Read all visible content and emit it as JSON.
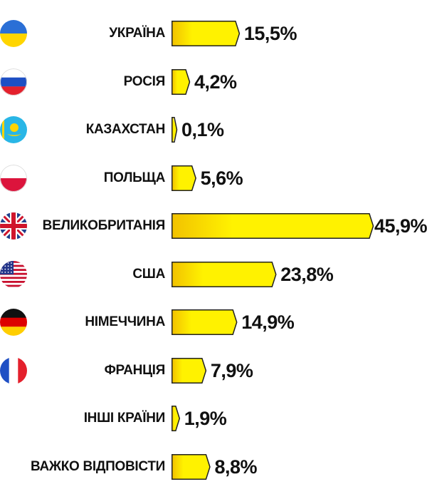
{
  "chart_data": {
    "type": "bar",
    "orientation": "horizontal",
    "title": "",
    "xlabel": "",
    "ylabel": "",
    "bar_color": "#fff200",
    "grid": false,
    "categories": [
      "УКРАЇНА",
      "РОСІЯ",
      "КАЗАХСТАН",
      "ПОЛЬЩА",
      "ВЕЛИКОБРИТАНІЯ",
      "США",
      "НІМЕЧЧИНА",
      "ФРАНЦІЯ",
      "ІНШІ КРАЇНИ",
      "ВАЖКО ВІДПОВІСТИ"
    ],
    "values": [
      15.5,
      4.2,
      0.1,
      5.6,
      45.9,
      23.8,
      14.9,
      7.9,
      1.9,
      8.8
    ],
    "value_labels": [
      "15,5%",
      "4,2%",
      "0,1%",
      "5,6%",
      "45,9%",
      "23,8%",
      "14,9%",
      "7,9%",
      "1,9%",
      "8,8%"
    ],
    "flags": [
      "ukraine-flag-icon",
      "russia-flag-icon",
      "kazakhstan-flag-icon",
      "poland-flag-icon",
      "uk-flag-icon",
      "usa-flag-icon",
      "germany-flag-icon",
      "france-flag-icon",
      "",
      ""
    ],
    "xlim": [
      0,
      45.9
    ]
  }
}
